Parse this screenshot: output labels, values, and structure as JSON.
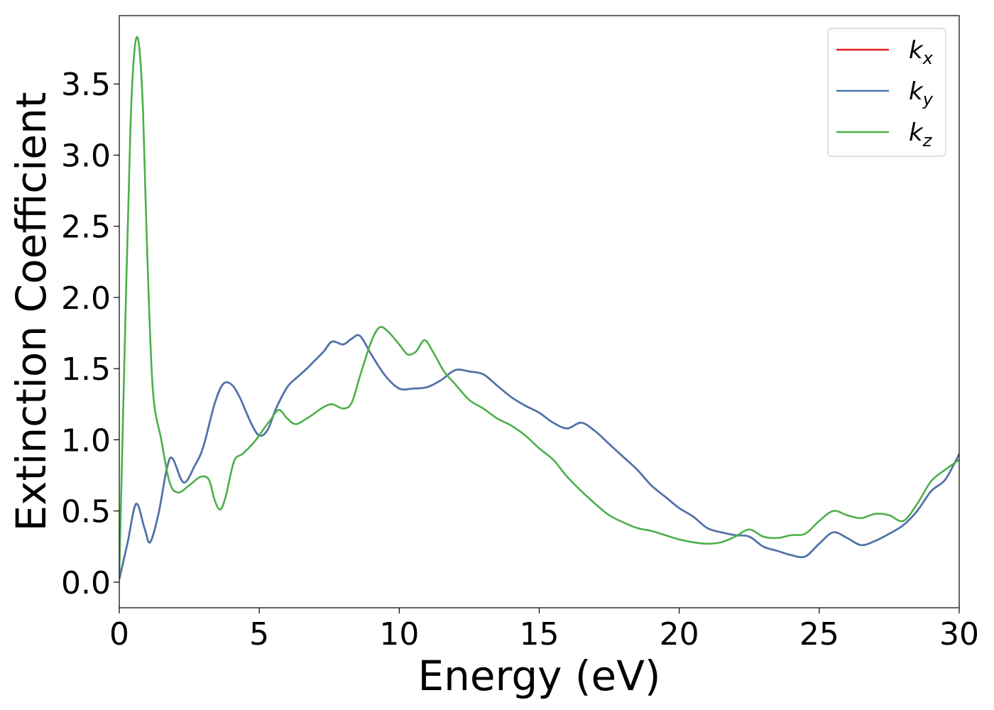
{
  "chart_data": {
    "type": "line",
    "xlabel": "Energy (eV)",
    "ylabel": "Extinction Coefficient",
    "xlim": [
      0,
      30
    ],
    "ylim": [
      -0.18,
      3.98
    ],
    "xticks": [
      0,
      5,
      10,
      15,
      20,
      25,
      30
    ],
    "xtick_labels": [
      "0",
      "5",
      "10",
      "15",
      "20",
      "25",
      "30"
    ],
    "yticks": [
      0.0,
      0.5,
      1.0,
      1.5,
      2.0,
      2.5,
      3.0,
      3.5
    ],
    "ytick_labels": [
      "0.0",
      "0.5",
      "1.0",
      "1.5",
      "2.0",
      "2.5",
      "3.0",
      "3.5"
    ],
    "grid": false,
    "legend_position": "top-right",
    "series": [
      {
        "name": "k",
        "subscript": "x",
        "color": "#e41a1c",
        "x": [
          0,
          0.3,
          0.6,
          0.9,
          1.1,
          1.4,
          1.7,
          1.9,
          2.3,
          2.7,
          3.0,
          3.4,
          3.7,
          4.0,
          4.3,
          4.7,
          5.0,
          5.3,
          5.6,
          6.0,
          6.3,
          6.7,
          7.0,
          7.3,
          7.6,
          8.0,
          8.3,
          8.6,
          9.0,
          9.5,
          10.0,
          10.5,
          11.0,
          11.5,
          12.0,
          12.5,
          13.0,
          13.5,
          14.0,
          14.5,
          15.0,
          15.5,
          16.0,
          16.5,
          17.0,
          17.5,
          18.0,
          18.5,
          19.0,
          19.5,
          20.0,
          20.5,
          21.0,
          21.5,
          22.0,
          22.5,
          23.0,
          23.5,
          24.0,
          24.5,
          25.0,
          25.5,
          26.0,
          26.5,
          27.0,
          27.5,
          28.0,
          28.5,
          29.0,
          29.5,
          30.0
        ],
        "values": [
          0.02,
          0.28,
          0.55,
          0.38,
          0.28,
          0.48,
          0.8,
          0.87,
          0.7,
          0.82,
          0.95,
          1.25,
          1.39,
          1.39,
          1.3,
          1.12,
          1.03,
          1.07,
          1.22,
          1.37,
          1.43,
          1.5,
          1.56,
          1.62,
          1.69,
          1.67,
          1.71,
          1.73,
          1.6,
          1.45,
          1.36,
          1.36,
          1.37,
          1.42,
          1.49,
          1.48,
          1.46,
          1.38,
          1.3,
          1.24,
          1.19,
          1.12,
          1.08,
          1.12,
          1.06,
          0.97,
          0.88,
          0.79,
          0.68,
          0.6,
          0.52,
          0.46,
          0.38,
          0.35,
          0.33,
          0.32,
          0.25,
          0.22,
          0.19,
          0.18,
          0.27,
          0.35,
          0.31,
          0.26,
          0.29,
          0.34,
          0.4,
          0.5,
          0.64,
          0.72,
          0.9
        ]
      },
      {
        "name": "k",
        "subscript": "y",
        "color": "#4a76b0",
        "x": [
          0,
          0.3,
          0.6,
          0.9,
          1.1,
          1.4,
          1.7,
          1.9,
          2.3,
          2.7,
          3.0,
          3.4,
          3.7,
          4.0,
          4.3,
          4.7,
          5.0,
          5.3,
          5.6,
          6.0,
          6.3,
          6.7,
          7.0,
          7.3,
          7.6,
          8.0,
          8.3,
          8.6,
          9.0,
          9.5,
          10.0,
          10.5,
          11.0,
          11.5,
          12.0,
          12.5,
          13.0,
          13.5,
          14.0,
          14.5,
          15.0,
          15.5,
          16.0,
          16.5,
          17.0,
          17.5,
          18.0,
          18.5,
          19.0,
          19.5,
          20.0,
          20.5,
          21.0,
          21.5,
          22.0,
          22.5,
          23.0,
          23.5,
          24.0,
          24.5,
          25.0,
          25.5,
          26.0,
          26.5,
          27.0,
          27.5,
          28.0,
          28.5,
          29.0,
          29.5,
          30.0
        ],
        "values": [
          0.02,
          0.28,
          0.55,
          0.38,
          0.28,
          0.48,
          0.8,
          0.87,
          0.7,
          0.82,
          0.95,
          1.25,
          1.39,
          1.39,
          1.3,
          1.12,
          1.03,
          1.07,
          1.22,
          1.37,
          1.43,
          1.5,
          1.56,
          1.62,
          1.69,
          1.67,
          1.71,
          1.73,
          1.6,
          1.45,
          1.36,
          1.36,
          1.37,
          1.42,
          1.49,
          1.48,
          1.46,
          1.38,
          1.3,
          1.24,
          1.19,
          1.12,
          1.08,
          1.12,
          1.06,
          0.97,
          0.88,
          0.79,
          0.68,
          0.6,
          0.52,
          0.46,
          0.38,
          0.35,
          0.33,
          0.32,
          0.25,
          0.22,
          0.19,
          0.18,
          0.27,
          0.35,
          0.31,
          0.26,
          0.29,
          0.34,
          0.4,
          0.5,
          0.64,
          0.72,
          0.9
        ]
      },
      {
        "name": "k",
        "subscript": "z",
        "color": "#4daf4a",
        "x": [
          0,
          0.2,
          0.4,
          0.55,
          0.7,
          0.85,
          1.0,
          1.2,
          1.5,
          1.8,
          2.1,
          2.5,
          2.9,
          3.2,
          3.4,
          3.6,
          3.8,
          4.1,
          4.4,
          4.8,
          5.1,
          5.4,
          5.7,
          6.0,
          6.3,
          6.7,
          7.0,
          7.3,
          7.6,
          8.0,
          8.3,
          8.6,
          9.0,
          9.3,
          9.6,
          10.0,
          10.3,
          10.6,
          10.9,
          11.2,
          11.6,
          12.0,
          12.5,
          13.0,
          13.5,
          14.0,
          14.5,
          15.0,
          15.5,
          16.0,
          16.5,
          17.0,
          17.5,
          18.0,
          18.5,
          19.0,
          19.5,
          20.0,
          20.5,
          21.0,
          21.5,
          22.0,
          22.5,
          23.0,
          23.5,
          24.0,
          24.5,
          25.0,
          25.5,
          26.0,
          26.5,
          27.0,
          27.5,
          28.0,
          28.5,
          29.0,
          29.5,
          30.0
        ],
        "values": [
          0.05,
          1.7,
          3.2,
          3.75,
          3.78,
          3.3,
          2.3,
          1.35,
          1.0,
          0.7,
          0.63,
          0.68,
          0.74,
          0.72,
          0.58,
          0.51,
          0.6,
          0.85,
          0.9,
          0.98,
          1.06,
          1.14,
          1.21,
          1.15,
          1.11,
          1.15,
          1.19,
          1.23,
          1.25,
          1.22,
          1.26,
          1.45,
          1.69,
          1.79,
          1.76,
          1.67,
          1.6,
          1.62,
          1.7,
          1.62,
          1.48,
          1.39,
          1.28,
          1.22,
          1.15,
          1.1,
          1.03,
          0.94,
          0.86,
          0.74,
          0.64,
          0.55,
          0.47,
          0.42,
          0.38,
          0.36,
          0.33,
          0.3,
          0.28,
          0.27,
          0.28,
          0.32,
          0.37,
          0.32,
          0.31,
          0.33,
          0.34,
          0.43,
          0.5,
          0.47,
          0.45,
          0.48,
          0.47,
          0.43,
          0.55,
          0.71,
          0.79,
          0.86
        ]
      }
    ]
  }
}
